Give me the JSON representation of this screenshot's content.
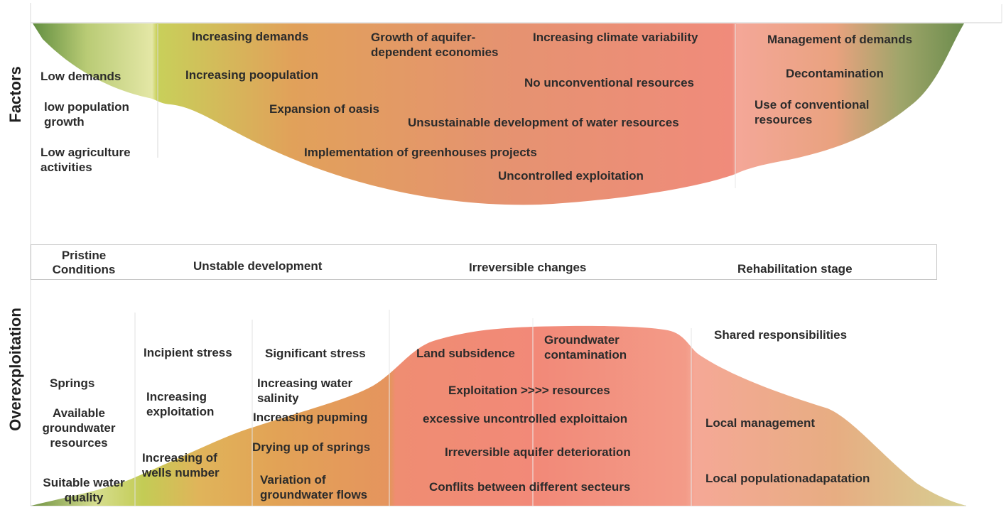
{
  "titles": {
    "factors": "Factors",
    "overexploitation": "Overexploitation"
  },
  "stages": {
    "pristine": "Pristine\nConditions",
    "unstable": "Unstable development",
    "irreversible": "Irreversible changes",
    "rehabilitation": "Rehabilitation stage"
  },
  "factors": {
    "pristine": {
      "low_demands": "Low demands",
      "low_population": "low population\ngrowth",
      "low_agriculture": "Low agriculture\nactivities"
    },
    "development": {
      "increasing_demands": "Increasing demands",
      "growth_economies": "Growth of aquifer-\ndependent economies",
      "climate_variability": "Increasing climate variability",
      "increasing_population": "Increasing poopulation",
      "no_unconventional": "No unconventional resources",
      "expansion_oasis": "Expansion of oasis",
      "unsustainable_development": "Unsustainable development of water resources",
      "greenhouses": "Implementation of greenhouses projects",
      "uncontrolled_exploitation": "Uncontrolled exploitation"
    },
    "rehabilitation": {
      "management_demands": "Management of demands",
      "decontamination": "Decontamination",
      "conventional_resources": "Use of conventional\nresources"
    }
  },
  "overexploitation": {
    "pristine": {
      "springs": "Springs",
      "available_groundwater": "Available\ngroundwater\nresources",
      "suitable_quality": "Suitable water\nquality"
    },
    "incipient": {
      "incipient_stress": "Incipient stress",
      "increasing_exploitation": "Increasing\nexploitation",
      "wells_number": "Increasing of\nwells number"
    },
    "significant": {
      "significant_stress": "Significant stress",
      "water_salinity": "Increasing water\nsalinity",
      "pumping": "Increasing pupming",
      "drying_springs": "Drying up of springs",
      "groundwater_flows": "Variation of\ngroundwater flows"
    },
    "irreversible": {
      "land_subsidence": "Land subsidence",
      "contamination": "Groundwater\ncontamination",
      "exploitation_resources": "Exploitation >>>> resources",
      "excessive_exploitation": "excessive uncontrolled exploittaion",
      "aquifer_deterioration": "Irreversible aquifer deterioration",
      "conflicts": "Conflits between different secteurs"
    },
    "rehabilitation": {
      "shared_responsibilities": "Shared responsibilities",
      "local_management": "Local management",
      "local_adaptation": "Local populationadapatation"
    }
  },
  "colors": {
    "green": "#6f8f48",
    "light_green": "#e3e59f",
    "yellow_green": "#c9cf55",
    "orange": "#e08a54",
    "red": "#f08a78",
    "pink": "#f4a698",
    "text": "#2b2b2b"
  }
}
